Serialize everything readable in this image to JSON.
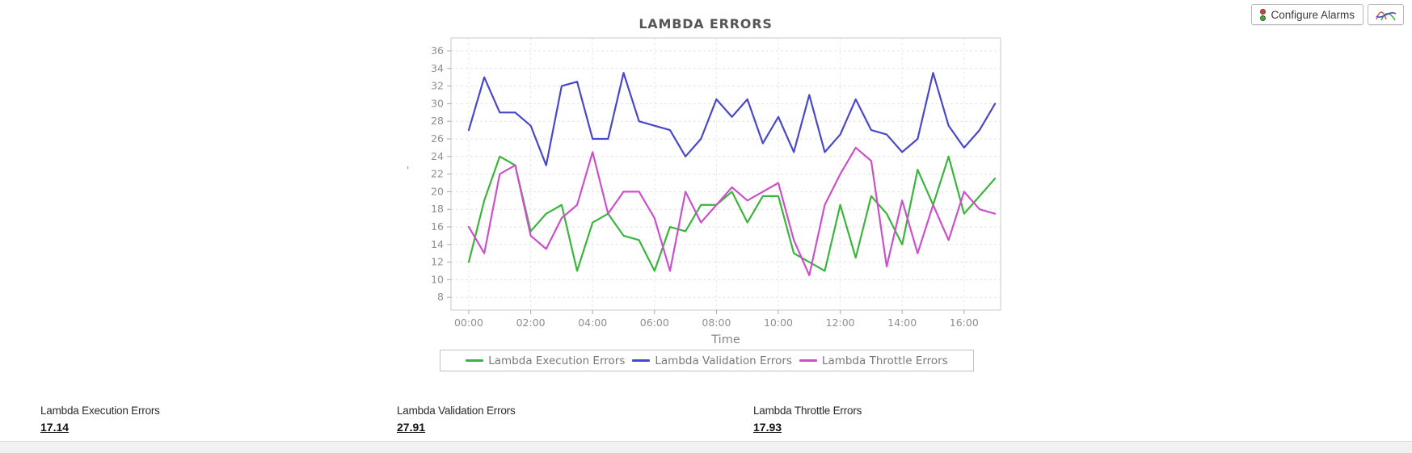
{
  "toolbar": {
    "configure_alarms_label": "Configure Alarms",
    "icons": {
      "configure_alarms": "traffic-light-icon",
      "chart_style_button": "line-chart-icon"
    }
  },
  "chart": {
    "y_axis_mark": "'"
  },
  "chart_data": {
    "type": "line",
    "title": "LAMBDA ERRORS",
    "xlabel": "Time",
    "ylabel": "",
    "grid": true,
    "legend_position": "bottom",
    "ylim": [
      6.5,
      37.5
    ],
    "y_ticks": [
      8,
      10,
      12,
      14,
      16,
      18,
      20,
      22,
      24,
      26,
      28,
      30,
      32,
      34,
      36
    ],
    "x_start": 0,
    "x_step": 0.5,
    "x_ticks": [
      {
        "hour": 0,
        "label": "00:00"
      },
      {
        "hour": 2,
        "label": "02:00"
      },
      {
        "hour": 4,
        "label": "04:00"
      },
      {
        "hour": 6,
        "label": "06:00"
      },
      {
        "hour": 8,
        "label": "08:00"
      },
      {
        "hour": 10,
        "label": "10:00"
      },
      {
        "hour": 12,
        "label": "12:00"
      },
      {
        "hour": 14,
        "label": "14:00"
      },
      {
        "hour": 16,
        "label": "16:00"
      }
    ],
    "series": [
      {
        "name": "Lambda Execution Errors",
        "color": "#3cb43c",
        "values": [
          12,
          19,
          24,
          23,
          15.5,
          17.5,
          18.5,
          11,
          16.5,
          17.5,
          15,
          14.5,
          11,
          16,
          15.5,
          18.5,
          18.5,
          20,
          16.5,
          19.5,
          19.5,
          13,
          12,
          11,
          18.5,
          12.5,
          19.5,
          17.5,
          14,
          22.5,
          18.5,
          24,
          17.5,
          19.5,
          21.5
        ]
      },
      {
        "name": "Lambda Validation Errors",
        "color": "#4848c8",
        "values": [
          27,
          33,
          29,
          29,
          27.5,
          23,
          32,
          32.5,
          26,
          26,
          33.5,
          28,
          27.5,
          27,
          24,
          26,
          30.5,
          28.5,
          30.5,
          25.5,
          28.5,
          24.5,
          31,
          24.5,
          26.5,
          30.5,
          27,
          26.5,
          24.5,
          26,
          33.5,
          27.5,
          25,
          27,
          30
        ]
      },
      {
        "name": "Lambda Throttle Errors",
        "color": "#cc4fcc",
        "values": [
          16,
          13,
          22,
          23,
          15,
          13.5,
          17,
          18.5,
          24.5,
          17.5,
          20,
          20,
          17,
          11,
          20,
          16.5,
          18.5,
          20.5,
          19,
          20,
          21,
          14.5,
          10.5,
          18.5,
          22,
          25,
          23.5,
          11.5,
          19,
          13,
          18.5,
          14.5,
          20,
          18,
          17.5
        ]
      }
    ]
  },
  "stats": [
    {
      "label": "Lambda Execution Errors",
      "value": "17.14"
    },
    {
      "label": "Lambda Validation Errors",
      "value": "27.91"
    },
    {
      "label": "Lambda Throttle Errors",
      "value": "17.93"
    }
  ]
}
